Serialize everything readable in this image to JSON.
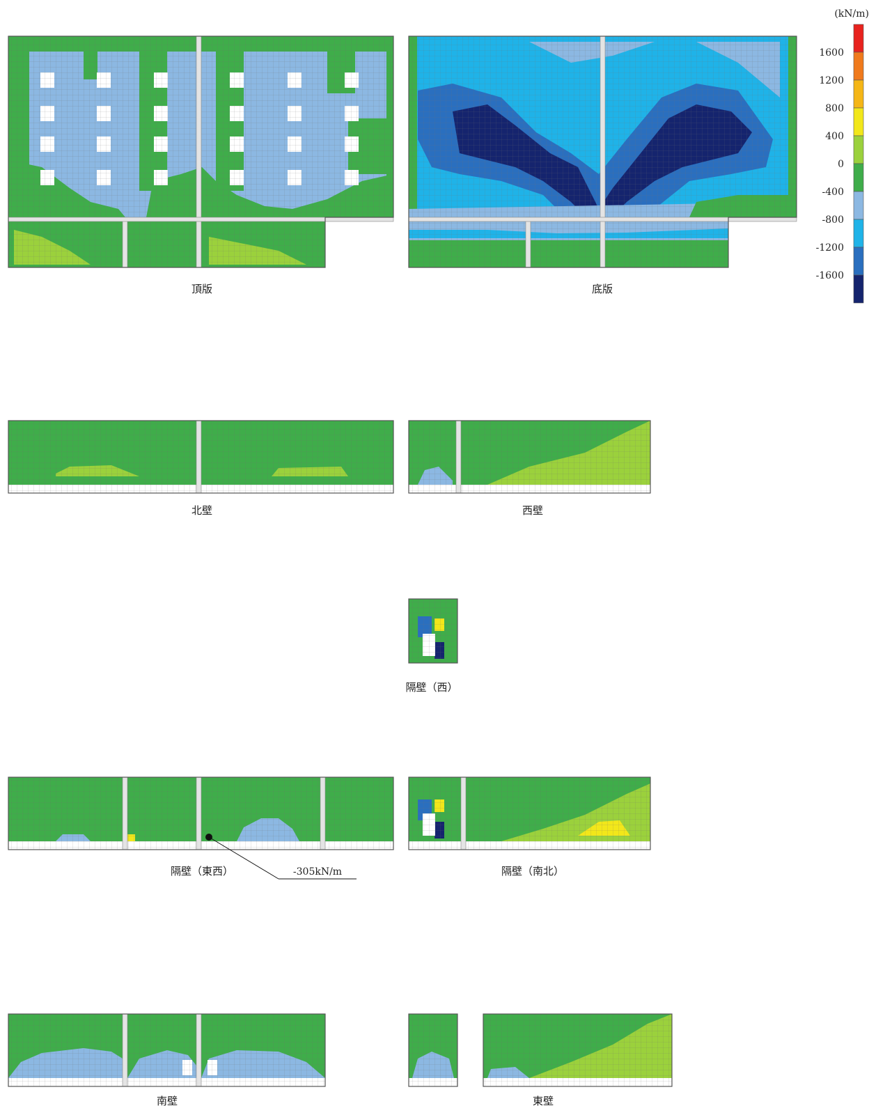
{
  "legend": {
    "unit": "(kN/m)",
    "ticks": [
      "1600",
      "1200",
      "800",
      "400",
      "0",
      "-400",
      "-800",
      "-1200",
      "-1600"
    ],
    "colors": [
      "#e8231e",
      "#f07a1c",
      "#f5b616",
      "#f2e71a",
      "#9bd13c",
      "#3fad4a",
      "#8cb8e2",
      "#1fb3e8",
      "#2a6fbf",
      "#15246e"
    ]
  },
  "panels": {
    "top_slab": "頂版",
    "bottom_slab": "底版",
    "north_wall": "北壁",
    "west_wall": "西壁",
    "partition_west": "隔壁（西）",
    "partition_ew": "隔壁（東西）",
    "partition_ns": "隔壁（南北）",
    "south_wall": "南壁",
    "east_wall": "東壁"
  },
  "annotation": {
    "value": "-305kN/m"
  }
}
